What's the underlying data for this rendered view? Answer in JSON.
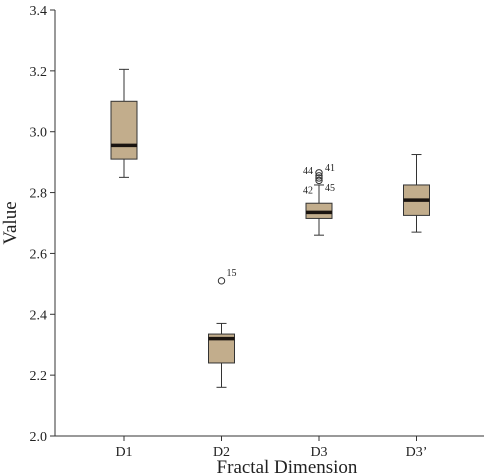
{
  "chart_data": {
    "type": "box",
    "title": "",
    "xlabel": "Fractal Dimension",
    "ylabel": "Value",
    "ylim": [
      2.0,
      3.4
    ],
    "yticks": [
      2.0,
      2.2,
      2.4,
      2.6,
      2.8,
      3.0,
      3.2,
      3.4
    ],
    "ytick_labels": [
      "2.0",
      "2.2",
      "2.4",
      "2.6",
      "2.8",
      "3.0",
      "3.2",
      "3.4"
    ],
    "categories": [
      "D1",
      "D2",
      "D3",
      "D3’"
    ],
    "boxes": [
      {
        "category": "D1",
        "whisker_low": 2.85,
        "q1": 2.91,
        "median": 2.955,
        "q3": 3.1,
        "whisker_high": 3.205,
        "outliers": []
      },
      {
        "category": "D2",
        "whisker_low": 2.16,
        "q1": 2.24,
        "median": 2.32,
        "q3": 2.335,
        "whisker_high": 2.37,
        "outliers": [
          {
            "value": 2.51,
            "label": "15"
          }
        ]
      },
      {
        "category": "D3",
        "whisker_low": 2.66,
        "q1": 2.715,
        "median": 2.735,
        "q3": 2.765,
        "whisker_high": 2.825,
        "outliers": [
          {
            "value": 2.84,
            "label": "42"
          },
          {
            "value": 2.848,
            "label": "45"
          },
          {
            "value": 2.855,
            "label": "44"
          },
          {
            "value": 2.865,
            "label": "41"
          }
        ]
      },
      {
        "category": "D3’",
        "whisker_low": 2.67,
        "q1": 2.725,
        "median": 2.775,
        "q3": 2.825,
        "whisker_high": 2.925,
        "outliers": []
      }
    ],
    "grid": false,
    "legend": "none",
    "colors": {
      "box_fill": "#c2ad8c",
      "box_stroke": "#333333",
      "median": "#1a1410",
      "axis": "#333333"
    }
  }
}
